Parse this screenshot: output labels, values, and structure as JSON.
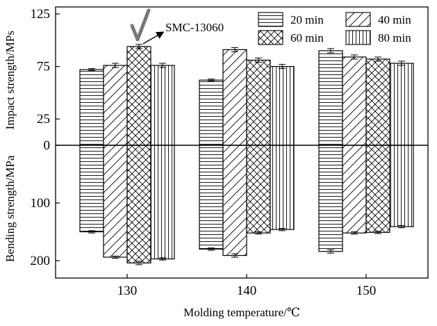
{
  "chart_data": {
    "type": "bar",
    "categories": [
      "130",
      "140",
      "150"
    ],
    "xlabel": "Molding temperature/℃",
    "ylabel_upper": "Impact strength/MPs",
    "ylabel_lower": "Bending strength/MPa",
    "upper_ylim": [
      0,
      125
    ],
    "lower_ylim": [
      0,
      230
    ],
    "upper_ticks": [
      0,
      25,
      75,
      125
    ],
    "lower_ticks": [
      100,
      200
    ],
    "series": [
      {
        "name": "20 min",
        "pattern": "horizontal",
        "impact": [
          72,
          62,
          90
        ],
        "impact_err": [
          1,
          1,
          2
        ],
        "bending": [
          150,
          180,
          184
        ],
        "bending_err": [
          2,
          2,
          3
        ]
      },
      {
        "name": "40 min",
        "pattern": "diagonal",
        "impact": [
          76,
          91,
          84
        ],
        "impact_err": [
          2,
          2,
          2
        ],
        "bending": [
          194,
          191,
          152
        ],
        "bending_err": [
          2,
          3,
          2
        ]
      },
      {
        "name": "60 min",
        "pattern": "crosshatch",
        "impact": [
          94,
          81,
          82
        ],
        "impact_err": [
          2,
          2,
          2
        ],
        "bending": [
          204,
          152,
          151
        ],
        "bending_err": [
          3,
          2,
          2
        ]
      },
      {
        "name": "80 min",
        "pattern": "vertical",
        "impact": [
          76,
          75,
          78
        ],
        "impact_err": [
          2,
          2,
          2
        ],
        "bending": [
          197,
          146,
          141
        ],
        "bending_err": [
          2,
          2,
          2
        ]
      }
    ],
    "annotation": {
      "text": "SMC-13060",
      "category_index": 0,
      "series_index": 2
    },
    "legend_position": "top-right",
    "grid": false
  }
}
